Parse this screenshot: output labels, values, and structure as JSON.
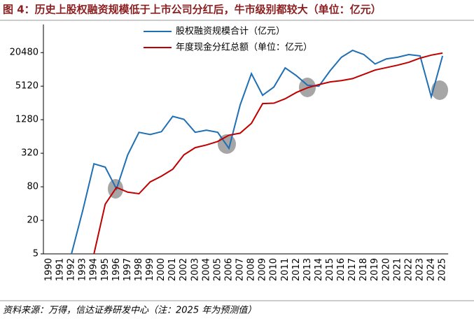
{
  "chart_data": {
    "type": "line",
    "title": "图 4：历史上股权融资规模低于上市公司分红后，牛市级别都较大（单位：亿元）",
    "source": "资料来源：万得，信达证券研发中心（注：2025 年为预测值）",
    "categories": [
      "1990",
      "1991",
      "1992",
      "1993",
      "1994",
      "1995",
      "1996",
      "1997",
      "1998",
      "1999",
      "2000",
      "2001",
      "2002",
      "2003",
      "2004",
      "2005",
      "2006",
      "2007",
      "2008",
      "2009",
      "2010",
      "2011",
      "2012",
      "2013",
      "2014",
      "2015",
      "2016",
      "2017",
      "2018",
      "2019",
      "2020",
      "2021",
      "2022",
      "2023",
      "2024",
      "2025"
    ],
    "series": [
      {
        "name": "股权融资规模合计（亿元）",
        "color": "#1f6fb4",
        "values": [
          null,
          null,
          5,
          30,
          207,
          180,
          73,
          300,
          760,
          695,
          780,
          1470,
          1300,
          760,
          830,
          760,
          392,
          2350,
          8600,
          3520,
          4950,
          10900,
          7900,
          5300,
          5120,
          9700,
          16900,
          22500,
          18900,
          12800,
          15800,
          16900,
          18900,
          17900,
          3300,
          17900
        ]
      },
      {
        "name": "年度现金分红总额（单位：亿元）",
        "color": "#c00000",
        "values": [
          null,
          null,
          null,
          null,
          5,
          39,
          78,
          64,
          60,
          98,
          124,
          165,
          300,
          403,
          450,
          520,
          675,
          735,
          1100,
          2490,
          2540,
          3040,
          3950,
          4800,
          5450,
          6100,
          6450,
          7000,
          8350,
          9950,
          11000,
          12200,
          13700,
          16300,
          18500,
          20100
        ]
      }
    ],
    "log_scale": true,
    "ylim": [
      5,
      65536
    ],
    "yticks": [
      5,
      20,
      80,
      320,
      1280,
      5120,
      20480
    ],
    "legend": "top"
  }
}
